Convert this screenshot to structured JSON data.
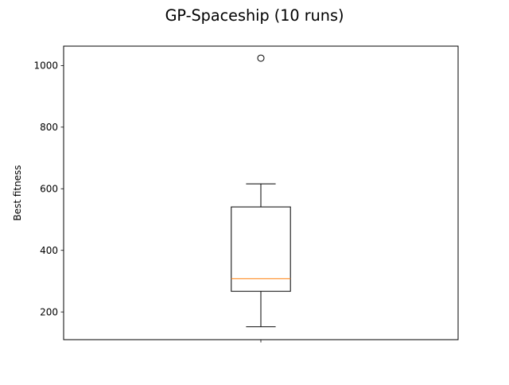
{
  "chart_data": {
    "type": "box",
    "title": "GP-Spaceship (10 runs)",
    "xlabel": "",
    "ylabel": "Best fitness",
    "ylim": [
      110,
      1063
    ],
    "yticks": [
      200,
      400,
      600,
      800,
      1000
    ],
    "grid": false,
    "categories": [
      ""
    ],
    "boxes": [
      {
        "whisker_low": 152,
        "q1": 267,
        "median": 308,
        "q3": 541,
        "whisker_high": 616,
        "outliers": [
          1024
        ]
      }
    ],
    "colors": {
      "box": "#000000",
      "median": "#ff7f0e",
      "background": "#ffffff"
    }
  }
}
